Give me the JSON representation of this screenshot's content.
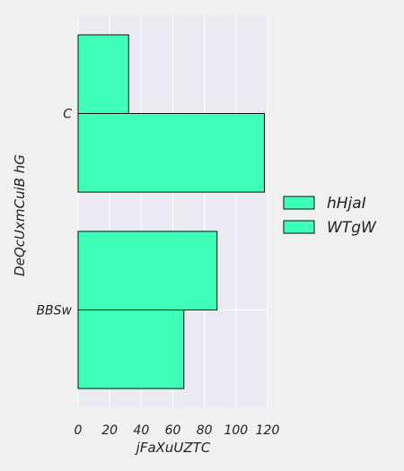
{
  "chart_data": {
    "type": "bar",
    "orientation": "horizontal",
    "categories": [
      "C",
      "BBSw"
    ],
    "series": [
      {
        "name": "hHjaI",
        "values": [
          32,
          88
        ]
      },
      {
        "name": "WTgW",
        "values": [
          118,
          67
        ]
      }
    ],
    "xlabel": "jFaXuUZTC",
    "ylabel": "DeQcUxmCuiB hG",
    "xlim": [
      0,
      120
    ],
    "xticks": [
      "0",
      "20",
      "40",
      "60",
      "80",
      "100",
      "120"
    ],
    "grid": true,
    "legend_position": "right"
  },
  "colors": {
    "bar_fill": "#3dffb8",
    "bar_stroke": "#111111",
    "plot_background": "#eaeaf2",
    "page_background": "#f0f0f0",
    "grid": "#ffffff"
  }
}
